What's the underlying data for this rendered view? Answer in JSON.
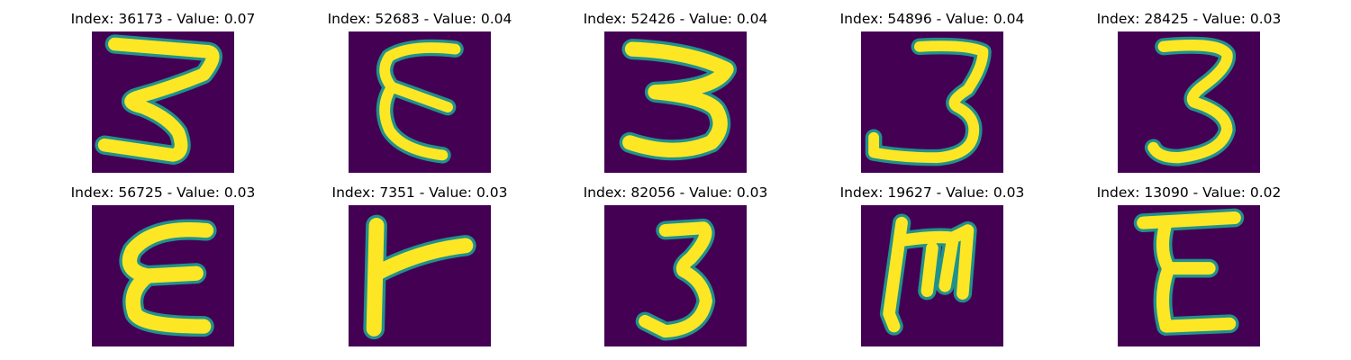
{
  "panels": [
    {
      "title": "Index: 36173 - Value: 0.07",
      "glyph": "3",
      "style": "wide-z"
    },
    {
      "title": "Index: 52683 - Value: 0.04",
      "glyph": "ε",
      "style": "epsilon"
    },
    {
      "title": "Index: 52426 - Value: 0.04",
      "glyph": "3",
      "style": "bold3"
    },
    {
      "title": "Index: 54896 - Value: 0.04",
      "glyph": "3",
      "style": "hook3"
    },
    {
      "title": "Index: 28425 - Value: 0.03",
      "glyph": "3",
      "style": "plain3"
    },
    {
      "title": "Index: 56725 - Value: 0.03",
      "glyph": "ε",
      "style": "epsilon2"
    },
    {
      "title": "Index: 7351 - Value: 0.03",
      "glyph": "r",
      "style": "r"
    },
    {
      "title": "Index: 82056 - Value: 0.03",
      "glyph": "3",
      "style": "narrow3"
    },
    {
      "title": "Index: 19627 - Value: 0.03",
      "glyph": "m",
      "style": "m"
    },
    {
      "title": "Index: 13090 - Value: 0.02",
      "glyph": "E",
      "style": "E"
    }
  ],
  "colors": {
    "background": "#440154",
    "stroke": "#fde725",
    "edge": "#21918c"
  }
}
